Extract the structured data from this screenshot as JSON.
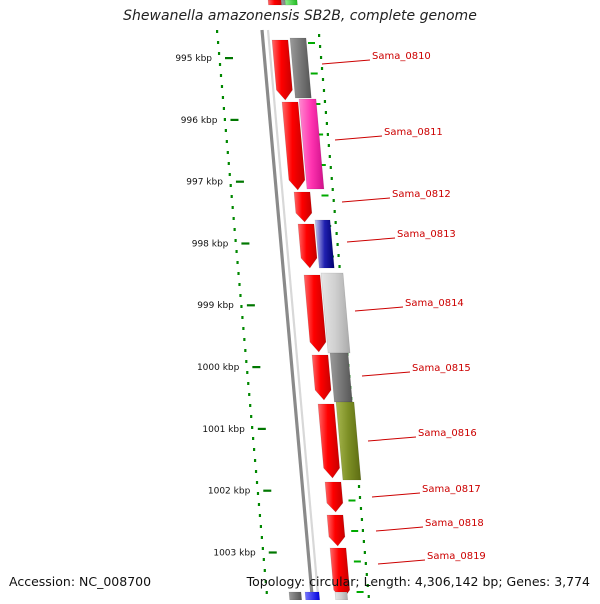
{
  "title": "Shewanella amazonensis SB2B, complete genome",
  "footer": {
    "accession": "Accession: NC_008700",
    "summary": "Topology: circular; Length: 4,306,142 bp; Genes: 3,774"
  },
  "colors": {
    "cds_forward": "#ff0000",
    "label": "#cc0000",
    "tick": "#007700",
    "backbone": "#888888"
  },
  "kbp_ticks": [
    "995 kbp",
    "996 kbp",
    "997 kbp",
    "998 kbp",
    "999 kbp",
    "1000 kbp",
    "1001 kbp",
    "1002 kbp",
    "1003 kbp"
  ],
  "gene_labels": [
    "Sama_0810",
    "Sama_0811",
    "Sama_0812",
    "Sama_0813",
    "Sama_0814",
    "Sama_0815",
    "Sama_0816",
    "Sama_0817",
    "Sama_0818",
    "Sama_0819"
  ]
}
